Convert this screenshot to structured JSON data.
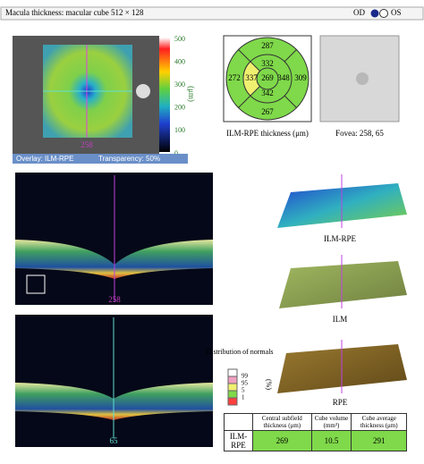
{
  "header": {
    "title": "Macula thickness: macular cube 512 × 128",
    "od": "OD",
    "os": "OS"
  },
  "thickness_map": {
    "scale_ticks": [
      "500",
      "400",
      "300",
      "200",
      "100",
      "0"
    ],
    "scale_unit": "(μm)",
    "scan_label": "258",
    "overlay": "Overlay: ILM-RPE",
    "transparency": "Transparency: 50%"
  },
  "etdrs": {
    "superior_outer": "287",
    "superior_inner": "332",
    "nasal_outer": "272",
    "nasal_inner": "337",
    "center": "269",
    "temporal_inner": "348",
    "temporal_outer": "309",
    "inferior_inner": "342",
    "inferior_outer": "267",
    "caption": "ILM-RPE thickness (μm)"
  },
  "fovea": {
    "caption": "Fovea: 258, 65"
  },
  "bscans": {
    "horizontal_label": "258",
    "vertical_label": "65"
  },
  "surfaces": {
    "labels": [
      "ILM-RPE",
      "ILM",
      "RPE"
    ]
  },
  "normals": {
    "title": "Distribution of normals",
    "unit": "(%)",
    "levels": [
      "99",
      "95",
      "5",
      "1"
    ]
  },
  "table": {
    "headers": [
      "Central subfield thickness (μm)",
      "Cube volume (mm³)",
      "Cube average thickness (μm)"
    ],
    "row": [
      "ILM-RPE",
      "269",
      "10.5",
      "291"
    ]
  }
}
